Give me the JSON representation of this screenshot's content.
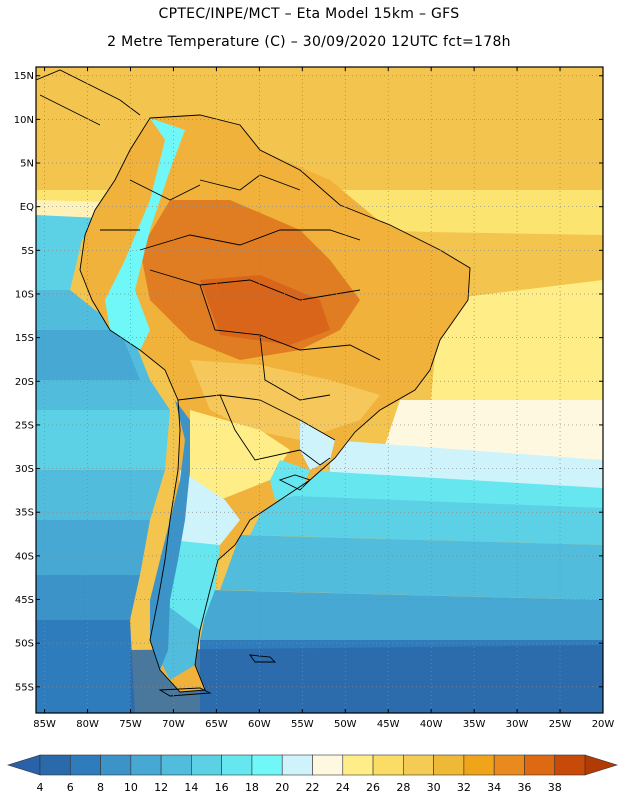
{
  "header": {
    "line1": "CPTEC/INPE/MCT –  Eta Model 15km – GFS",
    "line2": "2 Metre Temperature (C) – 30/09/2020 12UTC fct=178h"
  },
  "map": {
    "lat_labels": [
      "15N",
      "10N",
      "5N",
      "EQ",
      "5S",
      "10S",
      "15S",
      "20S",
      "25S",
      "30S",
      "35S",
      "40S",
      "45S",
      "50S",
      "55S"
    ],
    "lon_labels": [
      "85W",
      "80W",
      "75W",
      "70W",
      "65W",
      "60W",
      "55W",
      "50W",
      "45W",
      "40W",
      "35W",
      "30W",
      "25W",
      "20W"
    ],
    "lat_range": [
      16,
      -58
    ],
    "lon_range": [
      -86,
      -20
    ],
    "grid": "dotted"
  },
  "colorbar": {
    "labels": [
      "4",
      "6",
      "8",
      "10",
      "12",
      "14",
      "16",
      "18",
      "20",
      "22",
      "24",
      "26",
      "28",
      "30",
      "32",
      "34",
      "36",
      "38"
    ],
    "colors": [
      "#2b6aaa",
      "#2f7cbc",
      "#3b93c8",
      "#47a9d3",
      "#52bcdc",
      "#5cd0e4",
      "#66e6ee",
      "#70f8f8",
      "#cff3fb",
      "#fff8e0",
      "#ffee88",
      "#fbdc66",
      "#f4cc55",
      "#eeb937",
      "#f0a41a",
      "#e88a1e",
      "#dd6a12",
      "#c84a08"
    ],
    "low_end_color": "#2962a8",
    "high_end_color": "#b23b04"
  }
}
